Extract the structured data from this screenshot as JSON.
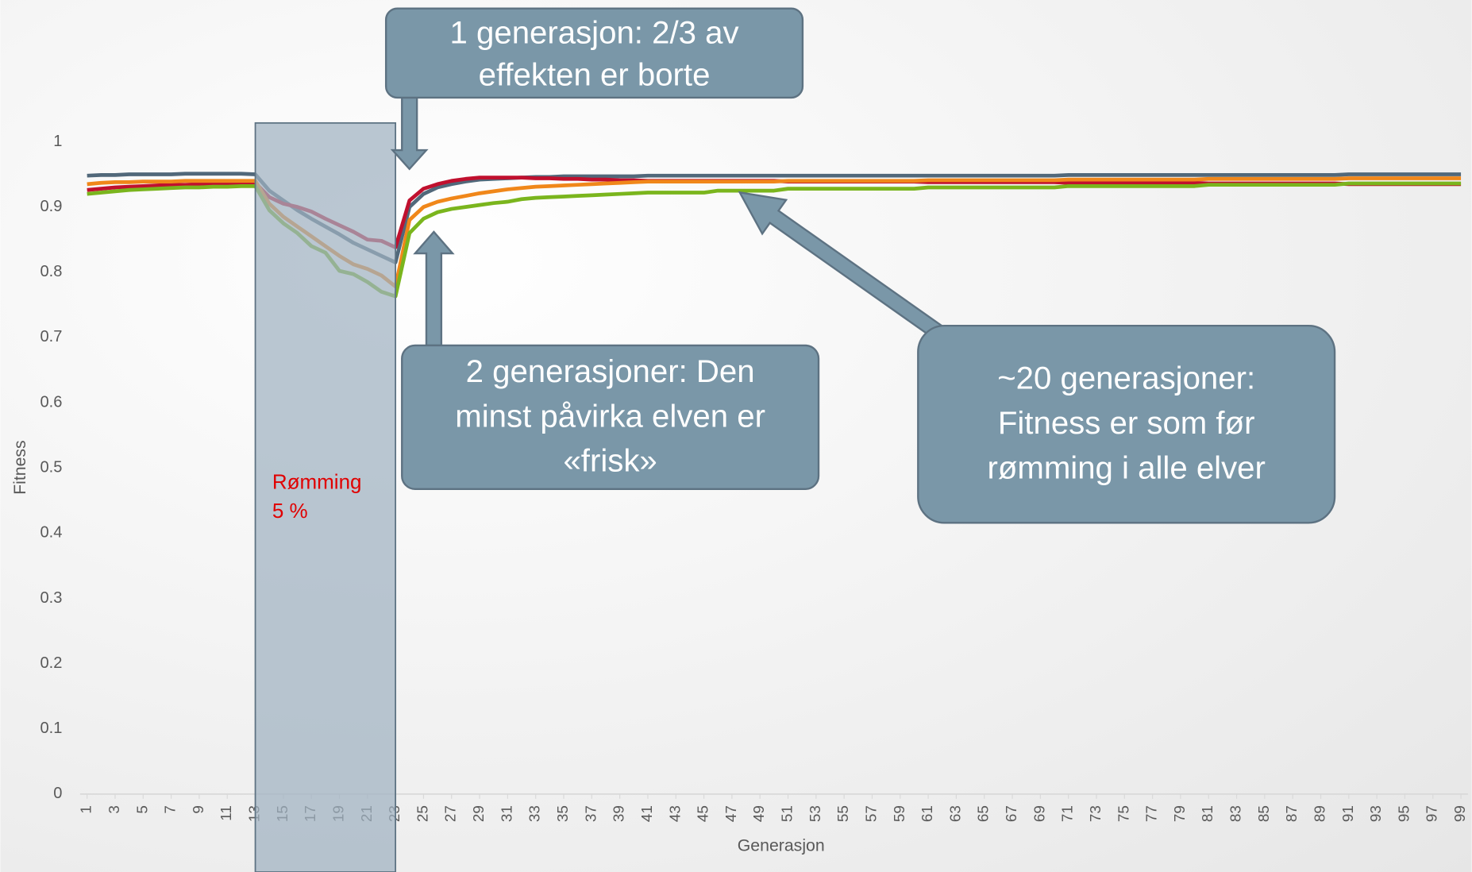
{
  "chart_data": {
    "type": "line",
    "x_label": "Generasjon",
    "y_label": "Fitness",
    "x": [
      1,
      2,
      3,
      4,
      5,
      6,
      7,
      8,
      9,
      10,
      11,
      12,
      13,
      14,
      15,
      16,
      17,
      18,
      19,
      20,
      21,
      22,
      23,
      24,
      25,
      26,
      27,
      28,
      29,
      30,
      31,
      32,
      33,
      34,
      35,
      36,
      37,
      38,
      39,
      40,
      41,
      42,
      43,
      44,
      45,
      46,
      47,
      48,
      49,
      50,
      51,
      52,
      53,
      54,
      55,
      56,
      57,
      58,
      59,
      60,
      61,
      62,
      63,
      64,
      65,
      66,
      67,
      68,
      69,
      70,
      71,
      72,
      73,
      74,
      75,
      76,
      77,
      78,
      79,
      80,
      81,
      82,
      83,
      84,
      85,
      86,
      87,
      88,
      89,
      90,
      91,
      92,
      93,
      94,
      95,
      96,
      97,
      98,
      99
    ],
    "xlim": [
      0.5,
      99.5
    ],
    "xticks": [
      1,
      3,
      5,
      7,
      9,
      11,
      13,
      15,
      17,
      19,
      21,
      23,
      25,
      27,
      29,
      31,
      33,
      35,
      37,
      39,
      41,
      43,
      45,
      47,
      49,
      51,
      53,
      55,
      57,
      59,
      61,
      63,
      65,
      67,
      69,
      71,
      73,
      75,
      77,
      79,
      81,
      83,
      85,
      87,
      89,
      91,
      93,
      95,
      97,
      99
    ],
    "ylim": [
      0,
      1
    ],
    "yticks": [
      0,
      0.1,
      0.2,
      0.3,
      0.4,
      0.5,
      0.6,
      0.7,
      0.8,
      0.9,
      1
    ],
    "grid": false,
    "series": [
      {
        "color": "#51687a",
        "values": [
          0.948,
          0.949,
          0.949,
          0.95,
          0.95,
          0.95,
          0.95,
          0.951,
          0.951,
          0.951,
          0.951,
          0.951,
          0.95,
          0.925,
          0.91,
          0.895,
          0.882,
          0.87,
          0.858,
          0.845,
          0.835,
          0.825,
          0.815,
          0.9,
          0.92,
          0.93,
          0.935,
          0.939,
          0.942,
          0.943,
          0.944,
          0.945,
          0.946,
          0.946,
          0.947,
          0.947,
          0.947,
          0.947,
          0.947,
          0.947,
          0.948,
          0.948,
          0.948,
          0.948,
          0.948,
          0.948,
          0.948,
          0.948,
          0.948,
          0.948,
          0.948,
          0.948,
          0.948,
          0.948,
          0.948,
          0.948,
          0.948,
          0.948,
          0.948,
          0.948,
          0.948,
          0.948,
          0.948,
          0.948,
          0.948,
          0.948,
          0.948,
          0.948,
          0.948,
          0.948,
          0.949,
          0.949,
          0.949,
          0.949,
          0.949,
          0.949,
          0.949,
          0.949,
          0.949,
          0.949,
          0.949,
          0.949,
          0.949,
          0.949,
          0.949,
          0.949,
          0.949,
          0.949,
          0.949,
          0.949,
          0.95,
          0.95,
          0.95,
          0.95,
          0.95,
          0.95,
          0.95,
          0.95,
          0.95
        ]
      },
      {
        "color": "#c0102e",
        "values": [
          0.926,
          0.928,
          0.93,
          0.931,
          0.932,
          0.933,
          0.934,
          0.934,
          0.935,
          0.935,
          0.936,
          0.936,
          0.937,
          0.915,
          0.905,
          0.9,
          0.893,
          0.882,
          0.872,
          0.862,
          0.85,
          0.848,
          0.838,
          0.91,
          0.928,
          0.935,
          0.94,
          0.943,
          0.945,
          0.945,
          0.945,
          0.945,
          0.944,
          0.944,
          0.943,
          0.943,
          0.942,
          0.942,
          0.941,
          0.941,
          0.94,
          0.94,
          0.94,
          0.94,
          0.94,
          0.94,
          0.94,
          0.94,
          0.94,
          0.94,
          0.939,
          0.939,
          0.939,
          0.939,
          0.939,
          0.939,
          0.939,
          0.939,
          0.939,
          0.939,
          0.938,
          0.938,
          0.938,
          0.938,
          0.938,
          0.938,
          0.938,
          0.938,
          0.938,
          0.938,
          0.937,
          0.937,
          0.937,
          0.937,
          0.937,
          0.937,
          0.937,
          0.937,
          0.937,
          0.937,
          0.936,
          0.936,
          0.936,
          0.936,
          0.936,
          0.936,
          0.936,
          0.936,
          0.936,
          0.936,
          0.935,
          0.935,
          0.935,
          0.935,
          0.935,
          0.935,
          0.935,
          0.935,
          0.935
        ]
      },
      {
        "color": "#f0871a",
        "values": [
          0.935,
          0.937,
          0.938,
          0.938,
          0.939,
          0.939,
          0.939,
          0.94,
          0.94,
          0.94,
          0.94,
          0.94,
          0.94,
          0.905,
          0.885,
          0.87,
          0.855,
          0.84,
          0.825,
          0.812,
          0.805,
          0.795,
          0.778,
          0.88,
          0.9,
          0.908,
          0.913,
          0.917,
          0.921,
          0.924,
          0.927,
          0.929,
          0.931,
          0.932,
          0.933,
          0.934,
          0.935,
          0.936,
          0.937,
          0.938,
          0.939,
          0.939,
          0.939,
          0.939,
          0.939,
          0.939,
          0.939,
          0.939,
          0.939,
          0.939,
          0.94,
          0.94,
          0.94,
          0.94,
          0.94,
          0.94,
          0.94,
          0.94,
          0.94,
          0.94,
          0.941,
          0.941,
          0.941,
          0.941,
          0.941,
          0.941,
          0.941,
          0.941,
          0.941,
          0.941,
          0.942,
          0.942,
          0.942,
          0.942,
          0.942,
          0.942,
          0.942,
          0.942,
          0.942,
          0.942,
          0.943,
          0.943,
          0.943,
          0.943,
          0.943,
          0.943,
          0.943,
          0.943,
          0.943,
          0.943,
          0.944,
          0.944,
          0.944,
          0.944,
          0.944,
          0.944,
          0.944,
          0.944,
          0.944
        ]
      },
      {
        "color": "#7ab51d",
        "values": [
          0.92,
          0.922,
          0.924,
          0.926,
          0.927,
          0.928,
          0.929,
          0.93,
          0.93,
          0.931,
          0.931,
          0.932,
          0.932,
          0.895,
          0.875,
          0.86,
          0.84,
          0.83,
          0.802,
          0.797,
          0.785,
          0.77,
          0.763,
          0.86,
          0.882,
          0.892,
          0.897,
          0.9,
          0.903,
          0.906,
          0.908,
          0.912,
          0.914,
          0.915,
          0.916,
          0.917,
          0.918,
          0.919,
          0.92,
          0.921,
          0.922,
          0.922,
          0.922,
          0.922,
          0.922,
          0.925,
          0.925,
          0.925,
          0.925,
          0.925,
          0.928,
          0.928,
          0.928,
          0.928,
          0.928,
          0.928,
          0.928,
          0.928,
          0.928,
          0.928,
          0.93,
          0.93,
          0.93,
          0.93,
          0.93,
          0.93,
          0.93,
          0.93,
          0.93,
          0.93,
          0.932,
          0.932,
          0.932,
          0.932,
          0.932,
          0.932,
          0.932,
          0.932,
          0.932,
          0.932,
          0.934,
          0.934,
          0.934,
          0.934,
          0.934,
          0.934,
          0.934,
          0.934,
          0.934,
          0.934,
          0.936,
          0.936,
          0.936,
          0.936,
          0.936,
          0.936,
          0.936,
          0.936,
          0.936
        ]
      }
    ],
    "shaded_range": [
      13,
      23
    ],
    "shaded_label": [
      "Rømming",
      "5 %"
    ],
    "annotations": [
      {
        "lines": [
          "1 generasjon: 2/3 av",
          "effekten er borte"
        ]
      },
      {
        "lines": [
          "2 generasjoner: Den",
          "minst påvirka elven er",
          "«frisk»"
        ]
      },
      {
        "lines": [
          "~20 generasjoner:",
          "Fitness er som før",
          "rømming i alle elver"
        ]
      }
    ]
  }
}
